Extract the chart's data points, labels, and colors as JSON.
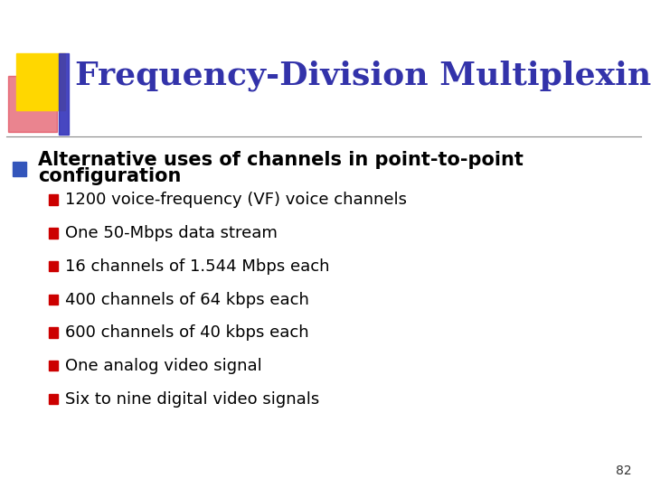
{
  "title": "Frequency-Division Multiplexing",
  "title_color": "#3333AA",
  "background_color": "#FFFFFF",
  "slide_number": "82",
  "bullet1_line1": "Alternative uses of channels in point-to-point",
  "bullet1_line2": "configuration",
  "bullet1_color": "#000000",
  "sub_bullets": [
    "1200 voice-frequency (VF) voice channels",
    "One 50-Mbps data stream",
    "16 channels of 1.544 Mbps each",
    "400 channels of 64 kbps each",
    "600 channels of 40 kbps each",
    "One analog video signal",
    "Six to nine digital video signals"
  ],
  "sub_bullet_color": "#000000",
  "bullet_square_color": "#CC0000",
  "bullet_square_color2": "#3355BB",
  "yellow_color": "#FFD700",
  "red_blob_color": "#DD3344",
  "blue_bar_color": "#3333BB",
  "line_color": "#888888"
}
